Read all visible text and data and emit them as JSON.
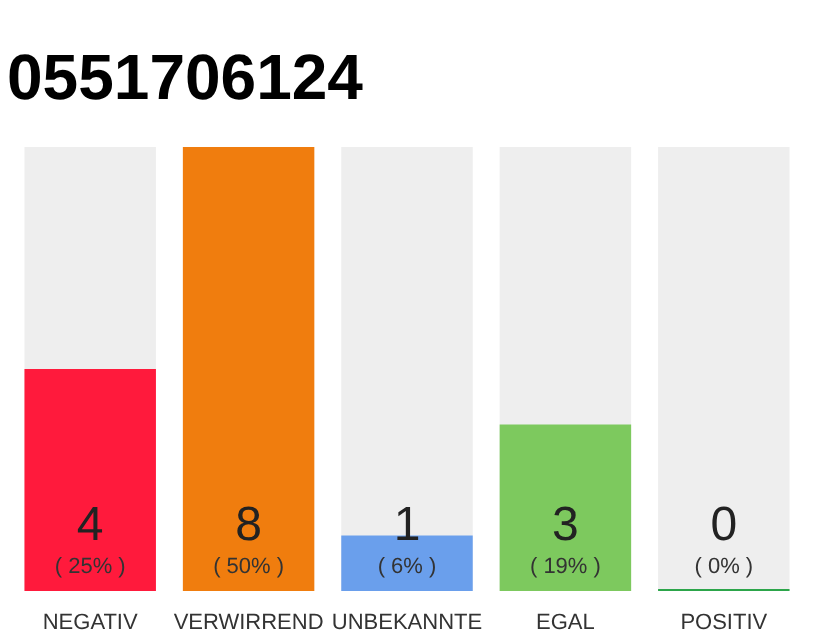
{
  "chart_data": {
    "type": "bar",
    "title": "0551706124",
    "categories": [
      "NEGATIV",
      "VERWIRREND",
      "UNBEKANNTE",
      "EGAL",
      "POSITIV"
    ],
    "values": [
      4,
      8,
      1,
      3,
      0
    ],
    "colors": [
      "#ff1a3c",
      "#f07d0e",
      "#6a9fec",
      "#7dc95e",
      "#2ca54a"
    ],
    "data_labels": true,
    "annotations": [
      "( 25% )",
      "( 50% )",
      "( 6% )",
      "( 19% )",
      "( 0% )"
    ],
    "bands": [
      {
        "axis": "x",
        "from": "NEGATIV",
        "to": "NEGATIV",
        "color": "#eeeeee"
      },
      {
        "axis": "x",
        "from": "UNBEKANNTE",
        "to": "UNBEKANNTE",
        "color": "#eeeeee"
      },
      {
        "axis": "x",
        "from": "EGAL",
        "to": "EGAL",
        "color": "#eeeeee"
      },
      {
        "axis": "x",
        "from": "POSITIV",
        "to": "POSITIV",
        "color": "#eeeeee"
      }
    ],
    "grid": false
  }
}
